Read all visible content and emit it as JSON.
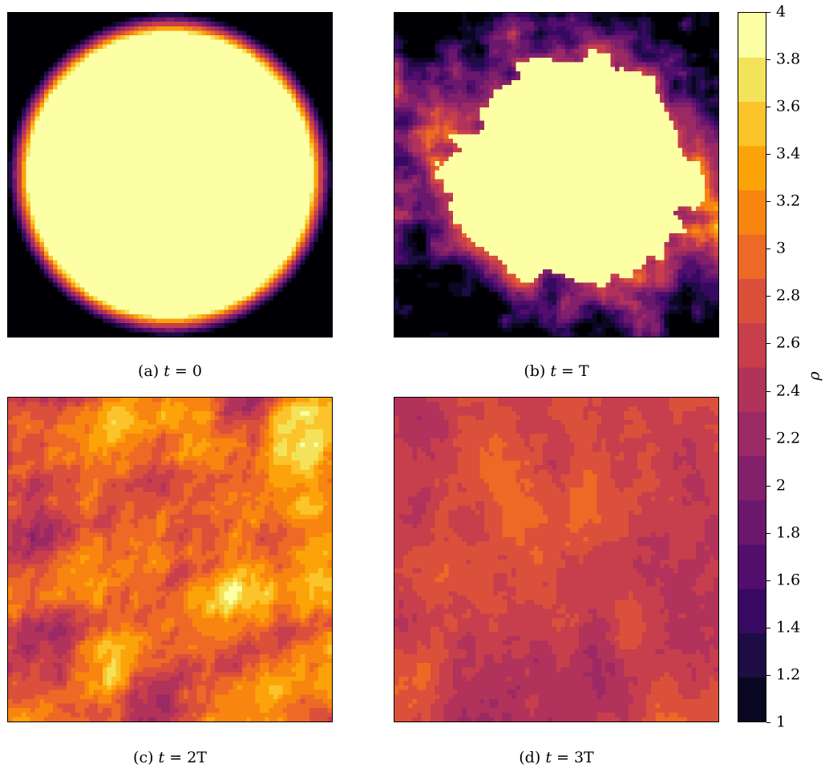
{
  "chart_data": {
    "type": "heatmap",
    "colormap": "inferno",
    "colorbar": {
      "label": "ρ",
      "range": [
        1,
        4
      ],
      "levels": 20,
      "ticks": [
        "1",
        "1.2",
        "1.4",
        "1.6",
        "1.8",
        "2",
        "2.2",
        "2.4",
        "2.6",
        "2.8",
        "3",
        "3.2",
        "3.4",
        "3.6",
        "3.8",
        "4"
      ],
      "colors": [
        "#000004",
        "#0a0722",
        "#1e0c45",
        "#380962",
        "#510e6c",
        "#6a176e",
        "#82206c",
        "#9b2964",
        "#b1325a",
        "#c73e4c",
        "#db503b",
        "#ed6925",
        "#f8850f",
        "#fca309",
        "#fac42a",
        "#f3e35a",
        "#fcffa4"
      ]
    },
    "panels": [
      {
        "prefix": "(a)",
        "var": "t",
        "rhs": "= 0",
        "description_kind": "circle"
      },
      {
        "prefix": "(b)",
        "var": "t",
        "rhs": "= T",
        "description_kind": "turbulent-early"
      },
      {
        "prefix": "(c)",
        "var": "t",
        "rhs": "= 2T",
        "description_kind": "turbulent-mid"
      },
      {
        "prefix": "(d)",
        "var": "t",
        "rhs": "= 3T",
        "description_kind": "turbulent-late"
      }
    ]
  }
}
